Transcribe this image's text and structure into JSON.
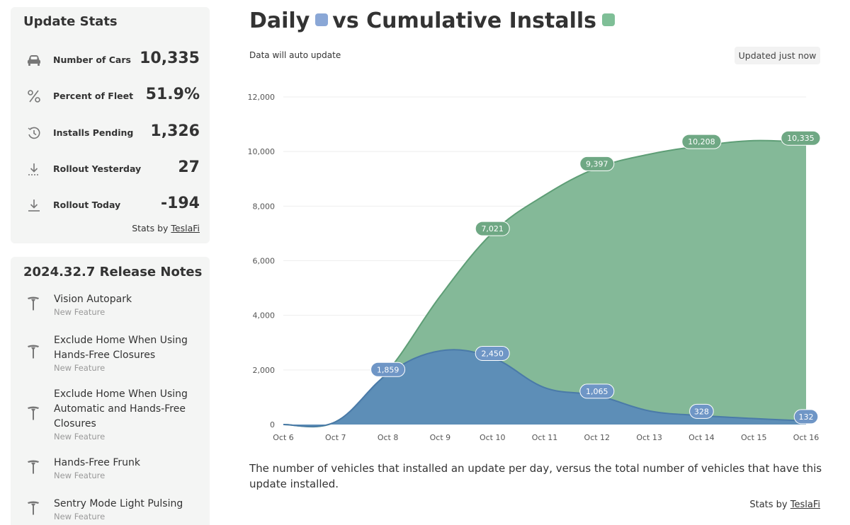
{
  "colors": {
    "daily": "#5b8bb8",
    "cumulative": "#7db592",
    "daily_badge": "#6f96c6",
    "cumulative_badge": "#6fa884",
    "swatch_daily": "#8aa7d6",
    "swatch_cumulative": "#7fbf97"
  },
  "stats": {
    "title": "Update Stats",
    "rows": [
      {
        "icon": "car-icon",
        "label": "Number of Cars",
        "value": "10,335"
      },
      {
        "icon": "percent-icon",
        "label": "Percent of Fleet",
        "value": "51.9%"
      },
      {
        "icon": "clock-history-icon",
        "label": "Installs Pending",
        "value": "1,326"
      },
      {
        "icon": "download-dotted-icon",
        "label": "Rollout Yesterday",
        "value": "27"
      },
      {
        "icon": "download-icon",
        "label": "Rollout Today",
        "value": "-194"
      }
    ],
    "credit_prefix": "Stats by ",
    "credit_link": "TeslaFi"
  },
  "notes": {
    "title": "2024.32.7 Release Notes",
    "items": [
      {
        "title": "Vision Autopark",
        "type": "New Feature"
      },
      {
        "title": "Exclude Home When Using Hands-Free Closures",
        "type": "New Feature"
      },
      {
        "title": "Exclude Home When Using Automatic and Hands-Free Closures",
        "type": "New Feature"
      },
      {
        "title": "Hands-Free Frunk",
        "type": "New Feature"
      },
      {
        "title": "Sentry Mode Light Pulsing",
        "type": "New Feature"
      }
    ]
  },
  "chart_header": {
    "title_part1": "Daily",
    "title_part2": "vs Cumulative Installs",
    "auto_update": "Data will auto update",
    "updated_badge": "Updated just now"
  },
  "caption": "The number of vehicles that installed an update per day, versus the total number of vehicles that have this update installed.",
  "chart_credit_prefix": "Stats by ",
  "chart_credit_link": "TeslaFi",
  "chart_data": {
    "type": "area",
    "title": "Daily vs Cumulative Installs",
    "categories": [
      "Oct 6",
      "Oct 7",
      "Oct 8",
      "Oct 9",
      "Oct 10",
      "Oct 11",
      "Oct 12",
      "Oct 13",
      "Oct 14",
      "Oct 15",
      "Oct 16"
    ],
    "ylim": [
      0,
      12000
    ],
    "yticks": [
      0,
      2000,
      4000,
      6000,
      8000,
      10000,
      12000
    ],
    "ytick_labels": [
      "0",
      "2,000",
      "4,000",
      "6,000",
      "8,000",
      "10,000",
      "12,000"
    ],
    "grid": true,
    "series": [
      {
        "key": "cumulative",
        "values": [
          0,
          100,
          1959,
          4700,
          7021,
          8400,
          9397,
          9900,
          10208,
          10400,
          10335
        ]
      },
      {
        "key": "daily",
        "values": [
          0,
          100,
          1859,
          2700,
          2450,
          1350,
          1065,
          500,
          328,
          220,
          132
        ]
      }
    ],
    "data_labels": [
      {
        "series": "daily",
        "index": 2,
        "text": "1,859"
      },
      {
        "series": "daily",
        "index": 4,
        "text": "2,450"
      },
      {
        "series": "daily",
        "index": 6,
        "text": "1,065"
      },
      {
        "series": "daily",
        "index": 8,
        "text": "328"
      },
      {
        "series": "daily",
        "index": 10,
        "text": "132"
      },
      {
        "series": "cumulative",
        "index": 4,
        "text": "7,021"
      },
      {
        "series": "cumulative",
        "index": 6,
        "text": "9,397"
      },
      {
        "series": "cumulative",
        "index": 8,
        "text": "10,208"
      },
      {
        "series": "cumulative",
        "index": 10,
        "text": "10,335"
      }
    ]
  }
}
